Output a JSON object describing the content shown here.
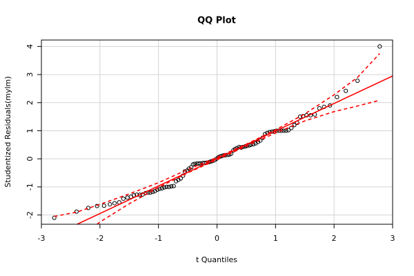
{
  "chart_data": {
    "type": "scatter",
    "title": "QQ Plot",
    "x_label": "t Quantiles",
    "y_label": "Studentized Residuals(mylm)",
    "xlim": [
      -3,
      3
    ],
    "ylim": [
      -2.33,
      4.23
    ],
    "xticks": [
      -3,
      -2,
      -1,
      0,
      1,
      2,
      3
    ],
    "yticks": [
      -2,
      -1,
      0,
      1,
      2,
      3,
      4
    ],
    "grid": true,
    "series": [
      {
        "style": "points",
        "color": "#000000",
        "x": [
          -2.78,
          -2.4,
          -2.2,
          -2.05,
          -1.93,
          -1.83,
          -1.75,
          -1.67,
          -1.6,
          -1.53,
          -1.47,
          -1.42,
          -1.37,
          -1.32,
          -1.27,
          -1.22,
          -1.18,
          -1.14,
          -1.1,
          -1.06,
          -1.02,
          -0.98,
          -0.94,
          -0.9,
          -0.86,
          -0.82,
          -0.78,
          -0.74,
          -0.7,
          -0.66,
          -0.62,
          -0.58,
          -0.55,
          -0.51,
          -0.48,
          -0.44,
          -0.41,
          -0.38,
          -0.34,
          -0.31,
          -0.28,
          -0.24,
          -0.21,
          -0.18,
          -0.14,
          -0.11,
          -0.08,
          -0.04,
          -0.01,
          0.02,
          0.05,
          0.08,
          0.11,
          0.14,
          0.18,
          0.21,
          0.24,
          0.28,
          0.31,
          0.34,
          0.38,
          0.41,
          0.44,
          0.48,
          0.51,
          0.55,
          0.58,
          0.62,
          0.66,
          0.7,
          0.74,
          0.78,
          0.82,
          0.86,
          0.9,
          0.94,
          0.98,
          1.02,
          1.06,
          1.1,
          1.14,
          1.18,
          1.22,
          1.27,
          1.32,
          1.37,
          1.42,
          1.47,
          1.53,
          1.6,
          1.67,
          1.75,
          1.83,
          1.93,
          2.05,
          2.2,
          2.4,
          2.78
        ],
        "values": [
          -2.1,
          -1.88,
          -1.75,
          -1.68,
          -1.67,
          -1.62,
          -1.58,
          -1.55,
          -1.42,
          -1.38,
          -1.35,
          -1.3,
          -1.28,
          -1.28,
          -1.27,
          -1.22,
          -1.2,
          -1.2,
          -1.18,
          -1.15,
          -1.1,
          -1.07,
          -1.05,
          -1.02,
          -1.0,
          -1.0,
          -0.98,
          -0.97,
          -0.8,
          -0.75,
          -0.7,
          -0.6,
          -0.45,
          -0.42,
          -0.35,
          -0.3,
          -0.2,
          -0.18,
          -0.17,
          -0.17,
          -0.16,
          -0.15,
          -0.15,
          -0.14,
          -0.12,
          -0.1,
          -0.08,
          -0.05,
          0.0,
          0.05,
          0.08,
          0.1,
          0.12,
          0.13,
          0.14,
          0.15,
          0.18,
          0.3,
          0.35,
          0.38,
          0.42,
          0.4,
          0.42,
          0.44,
          0.46,
          0.48,
          0.5,
          0.52,
          0.55,
          0.6,
          0.65,
          0.75,
          0.88,
          0.92,
          0.95,
          0.97,
          0.98,
          1.0,
          1.0,
          1.0,
          1.0,
          1.0,
          1.02,
          1.1,
          1.2,
          1.28,
          1.5,
          1.52,
          1.55,
          1.55,
          1.58,
          1.8,
          1.85,
          1.9,
          2.2,
          2.42,
          2.78,
          4.0
        ]
      },
      {
        "style": "line",
        "color": "#ff0000",
        "x": [
          -2.39,
          3
        ],
        "values": [
          -2.33,
          2.95
        ]
      },
      {
        "style": "dashed",
        "color": "#ff0000",
        "x": [
          -2.78,
          -2.4,
          -2,
          -1.5,
          -1,
          -0.5,
          0,
          0.5,
          1,
          1.5,
          2,
          2.4,
          2.78
        ],
        "values": [
          -2.05,
          -1.9,
          -1.62,
          -1.25,
          -0.85,
          -0.38,
          0.05,
          0.52,
          1.03,
          1.6,
          2.28,
          2.9,
          3.75
        ]
      },
      {
        "style": "dashed",
        "color": "#ff0000",
        "x": [
          -2.05,
          -2,
          -1.5,
          -1,
          -0.5,
          0,
          0.5,
          1,
          1.5,
          2,
          2.4,
          2.75
        ],
        "values": [
          -2.33,
          -2.25,
          -1.6,
          -1.02,
          -0.5,
          -0.03,
          0.45,
          0.92,
          1.35,
          1.68,
          1.88,
          2.07
        ]
      }
    ]
  }
}
